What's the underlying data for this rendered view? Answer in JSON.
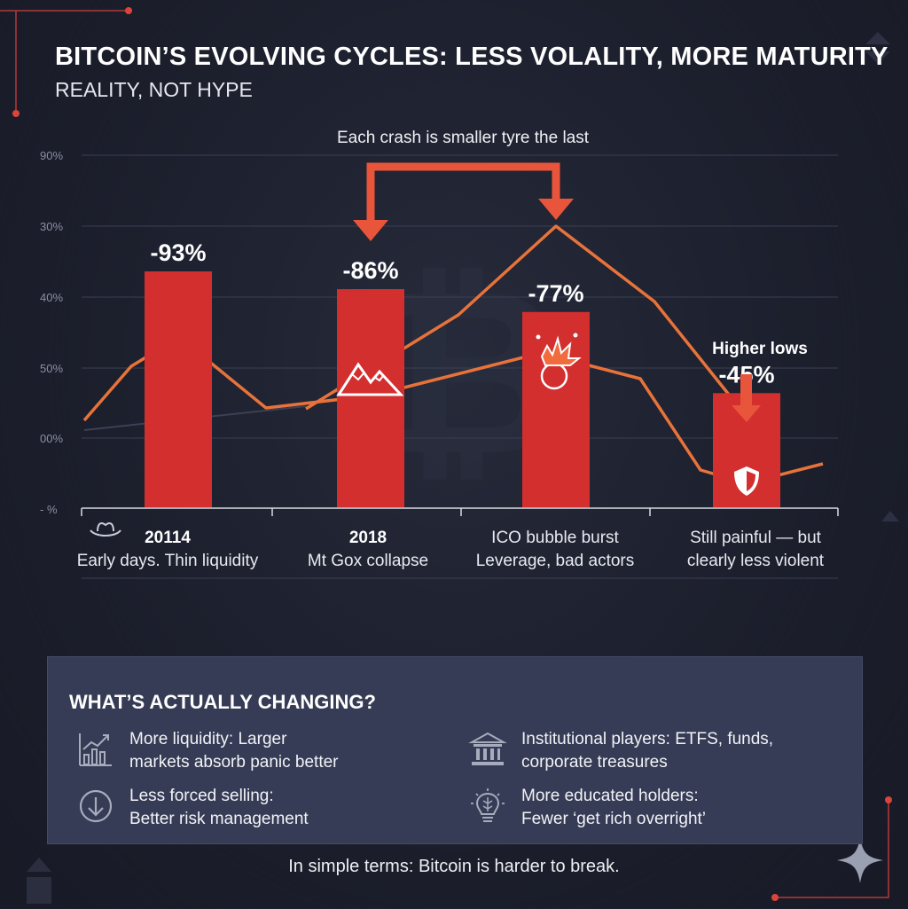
{
  "header": {
    "title": "BITCOIN’S EVOLVING CYCLES: LESS VOLALITY, MORE MATURITY",
    "subtitle": "REALITY, NOT HYPE"
  },
  "colors": {
    "background": "#1b1e2b",
    "bar": "#d32f2f",
    "line": "#e8733a",
    "arrow": "#e9553a",
    "panel": "#363c55"
  },
  "chart_data": {
    "type": "bar",
    "y_tick_labels": [
      "90%",
      "30%",
      "40%",
      "50%",
      "00%",
      "- %"
    ],
    "categories": [
      {
        "year": "20114",
        "description": "Early days. Thin liquidity",
        "icon": "cowboy-hat-icon"
      },
      {
        "year": "2018",
        "description": "Mt Gox collapse",
        "icon": "mountain-peaks-icon"
      },
      {
        "year": "",
        "lines": [
          "ICO bubble burst",
          "Leverage, bad actors"
        ],
        "icon": "explosion-icon"
      },
      {
        "year": "",
        "lines": [
          "Still painful — but",
          "clearly less violent"
        ],
        "icon": "shield-icon"
      }
    ],
    "series": [
      {
        "values": [
          -93,
          -86,
          -77,
          -45
        ],
        "value_labels": [
          "-93%",
          "-86%",
          "-77%",
          "-45%"
        ]
      }
    ],
    "annotations": {
      "crash_note": "Each crash is smaller tyre the last",
      "higher_lows": "Higher lows"
    },
    "grid": true
  },
  "panel": {
    "title": "WHAT’S ACTUALLY CHANGING?",
    "items": [
      {
        "icon": "chart-growth-icon",
        "lines": [
          "More liquidity: Larger",
          "markets absorb panic better"
        ]
      },
      {
        "icon": "bank-building-icon",
        "lines": [
          "Institutional players: ETFS, funds,",
          "corporate treasures"
        ]
      },
      {
        "icon": "arrow-down-circle-icon",
        "lines": [
          "Less forced selling:",
          "Better risk management"
        ]
      },
      {
        "icon": "lightbulb-brain-icon",
        "lines": [
          "More educated holders:",
          "Fewer ‘get rich overright’"
        ]
      }
    ]
  },
  "footer": "In simple terms: Bitcoin is harder to break."
}
